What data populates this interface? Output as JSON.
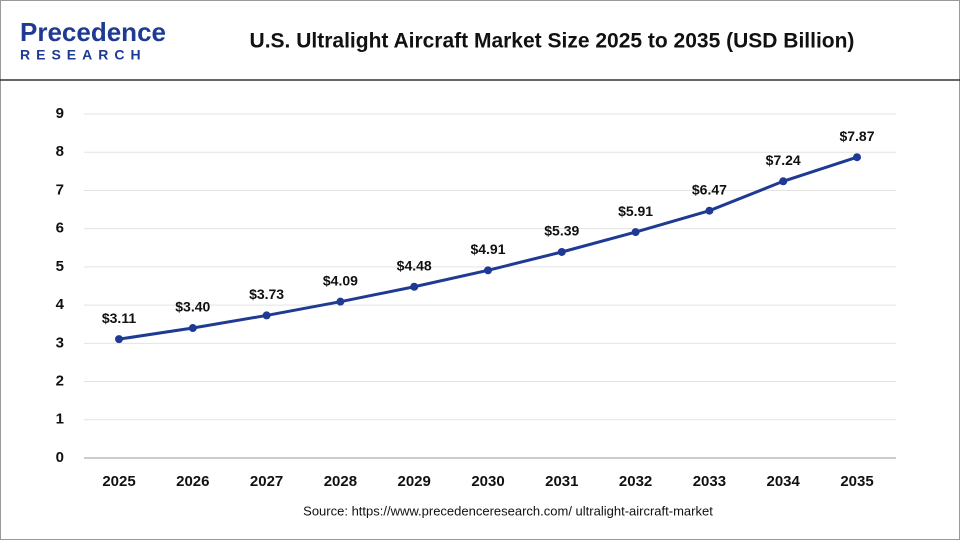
{
  "logo": {
    "name": "Precedence",
    "sub": "RESEARCH"
  },
  "chart_data": {
    "type": "line",
    "title": "U.S. Ultralight Aircraft Market Size 2025 to 2035 (USD Billion)",
    "source": "Source: https://www.precedenceresearch.com/ ultralight-aircraft-market",
    "categories": [
      "2025",
      "2026",
      "2027",
      "2028",
      "2029",
      "2030",
      "2031",
      "2032",
      "2033",
      "2034",
      "2035"
    ],
    "values": [
      3.11,
      3.4,
      3.73,
      4.09,
      4.48,
      4.91,
      5.39,
      5.91,
      6.47,
      7.24,
      7.87
    ],
    "value_labels": [
      "$3.11",
      "$3.40",
      "$3.73",
      "$4.09",
      "$4.48",
      "$4.91",
      "$5.39",
      "$5.91",
      "$6.47",
      "$7.24",
      "$7.87"
    ],
    "color": "#1f3a93",
    "ylim": [
      0,
      9
    ],
    "yticks": [
      0,
      1,
      2,
      3,
      4,
      5,
      6,
      7,
      8,
      9
    ],
    "grid": true
  }
}
